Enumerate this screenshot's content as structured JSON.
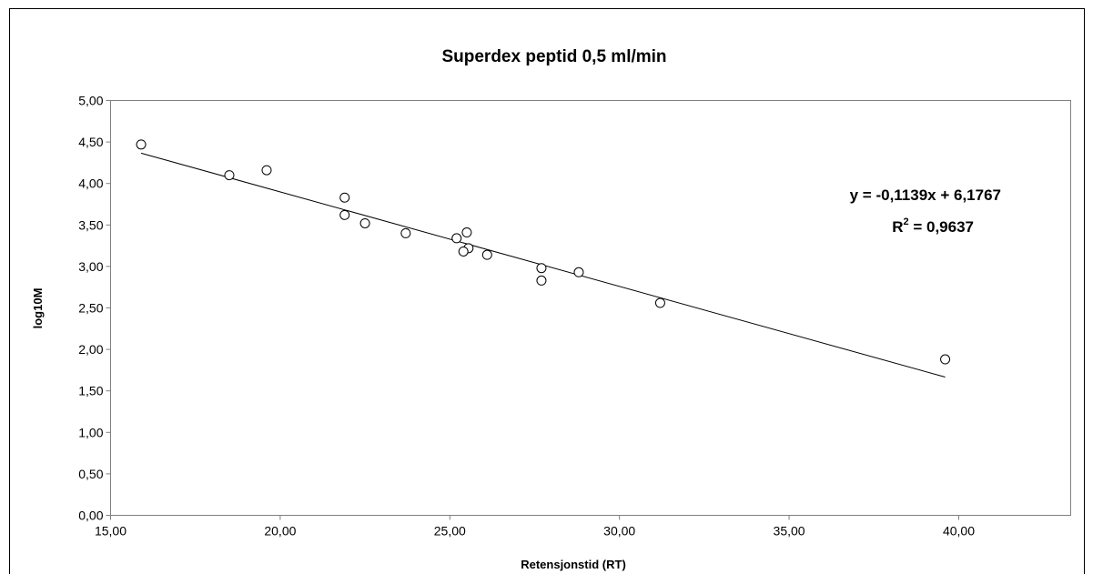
{
  "chart_data": {
    "type": "scatter",
    "title": "Superdex peptid 0,5 ml/min",
    "xlabel": "Retensjonstid (RT)",
    "ylabel": "log10M",
    "xlim": [
      15,
      43.3
    ],
    "ylim": [
      0,
      5
    ],
    "x_ticks": [
      "15,00",
      "20,00",
      "25,00",
      "30,00",
      "35,00",
      "40,00"
    ],
    "x_tick_values": [
      15,
      20,
      25,
      30,
      35,
      40
    ],
    "y_ticks": [
      "0,00",
      "0,50",
      "1,00",
      "1,50",
      "2,00",
      "2,50",
      "3,00",
      "3,50",
      "4,00",
      "4,50",
      "5,00"
    ],
    "y_tick_values": [
      0,
      0.5,
      1,
      1.5,
      2,
      2.5,
      3,
      3.5,
      4,
      4.5,
      5
    ],
    "grid": false,
    "points": [
      {
        "x": 15.9,
        "y": 4.47
      },
      {
        "x": 18.5,
        "y": 4.1
      },
      {
        "x": 19.6,
        "y": 4.16
      },
      {
        "x": 21.9,
        "y": 3.83
      },
      {
        "x": 21.9,
        "y": 3.62
      },
      {
        "x": 22.5,
        "y": 3.52
      },
      {
        "x": 23.7,
        "y": 3.4
      },
      {
        "x": 25.2,
        "y": 3.34
      },
      {
        "x": 25.5,
        "y": 3.41
      },
      {
        "x": 25.55,
        "y": 3.22
      },
      {
        "x": 25.4,
        "y": 3.18
      },
      {
        "x": 26.1,
        "y": 3.14
      },
      {
        "x": 27.7,
        "y": 2.98
      },
      {
        "x": 27.7,
        "y": 2.83
      },
      {
        "x": 28.8,
        "y": 2.93
      },
      {
        "x": 31.2,
        "y": 2.56
      },
      {
        "x": 39.6,
        "y": 1.88
      }
    ],
    "trendline": {
      "slope": -0.1139,
      "intercept": 6.1767,
      "x_range": [
        15.9,
        39.6
      ],
      "equation": "y = -0,1139x + 6,1767",
      "r2_prefix": "R",
      "r2_sup": "2",
      "r2_suffix": " = 0,9637"
    },
    "marker": "open-circle",
    "colors": {
      "marker": "#000000",
      "line": "#000000",
      "axis": "#808080",
      "border": "#000000"
    }
  }
}
